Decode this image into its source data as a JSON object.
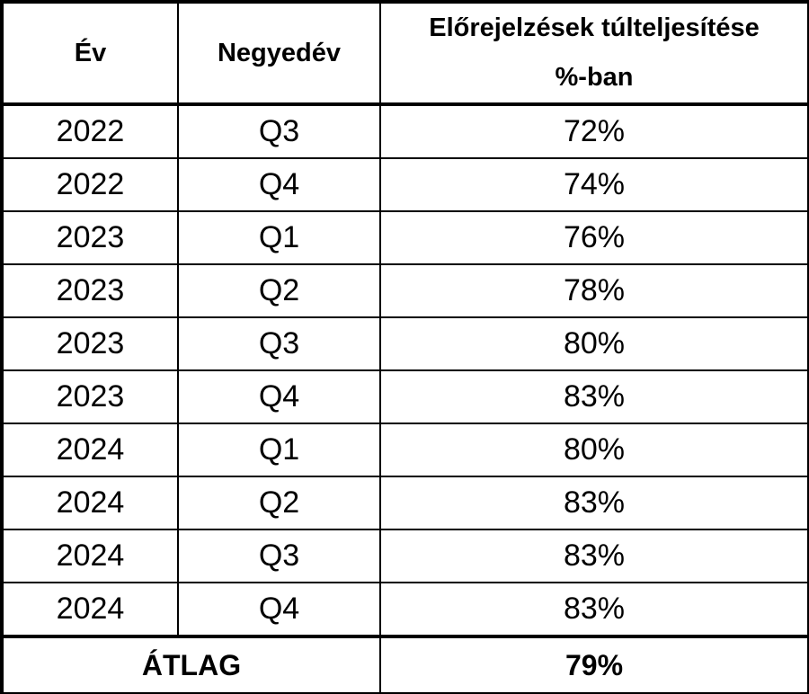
{
  "table": {
    "header": [
      "Év",
      "Negyedév",
      [
        "Előrejelzések túlteljesítése",
        "%-ban"
      ]
    ],
    "rows": [
      [
        "2022",
        "Q3",
        "72%"
      ],
      [
        "2022",
        "Q4",
        "74%"
      ],
      [
        "2023",
        "Q1",
        "76%"
      ],
      [
        "2023",
        "Q2",
        "78%"
      ],
      [
        "2023",
        "Q3",
        "80%"
      ],
      [
        "2023",
        "Q4",
        "83%"
      ],
      [
        "2024",
        "Q1",
        "80%"
      ],
      [
        "2024",
        "Q2",
        "83%"
      ],
      [
        "2024",
        "Q3",
        "83%"
      ],
      [
        "2024",
        "Q4",
        "83%"
      ]
    ],
    "footer": [
      "ÁTLAG",
      "79%"
    ]
  }
}
